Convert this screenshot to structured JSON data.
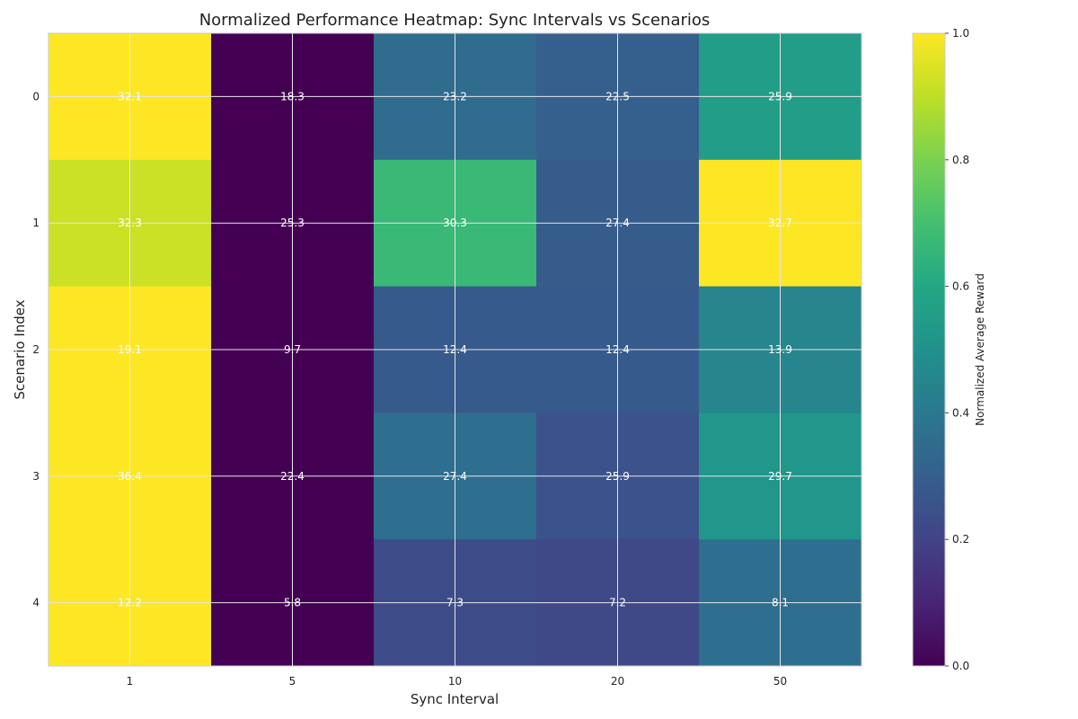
{
  "chart_data": {
    "type": "heatmap",
    "title": "Normalized Performance Heatmap: Sync Intervals vs Scenarios",
    "xlabel": "Sync Interval",
    "ylabel": "Scenario Index",
    "x_categories": [
      "1",
      "5",
      "10",
      "20",
      "50"
    ],
    "y_categories": [
      "0",
      "1",
      "2",
      "3",
      "4"
    ],
    "annotations": [
      [
        "32.1",
        "18.3",
        "23.2",
        "22.5",
        "25.9"
      ],
      [
        "32.3",
        "25.3",
        "30.3",
        "27.4",
        "32.7"
      ],
      [
        "19.1",
        "9.7",
        "12.4",
        "12.4",
        "13.9"
      ],
      [
        "36.4",
        "22.4",
        "27.4",
        "25.9",
        "29.7"
      ],
      [
        "12.2",
        "5.8",
        "7.3",
        "7.2",
        "8.1"
      ]
    ],
    "normalized_values": [
      [
        1.0,
        0.0,
        0.35,
        0.3,
        0.55
      ],
      [
        0.92,
        0.0,
        0.67,
        0.29,
        1.0
      ],
      [
        1.0,
        0.0,
        0.28,
        0.28,
        0.45
      ],
      [
        1.0,
        0.0,
        0.36,
        0.25,
        0.52
      ],
      [
        1.0,
        0.0,
        0.23,
        0.22,
        0.36
      ]
    ],
    "colormap": "viridis",
    "colorbar": {
      "label": "Normalized Average Reward",
      "range": [
        0.0,
        1.0
      ],
      "ticks": [
        "0.0",
        "0.2",
        "0.4",
        "0.6",
        "0.8",
        "1.0"
      ]
    },
    "grid": true
  }
}
